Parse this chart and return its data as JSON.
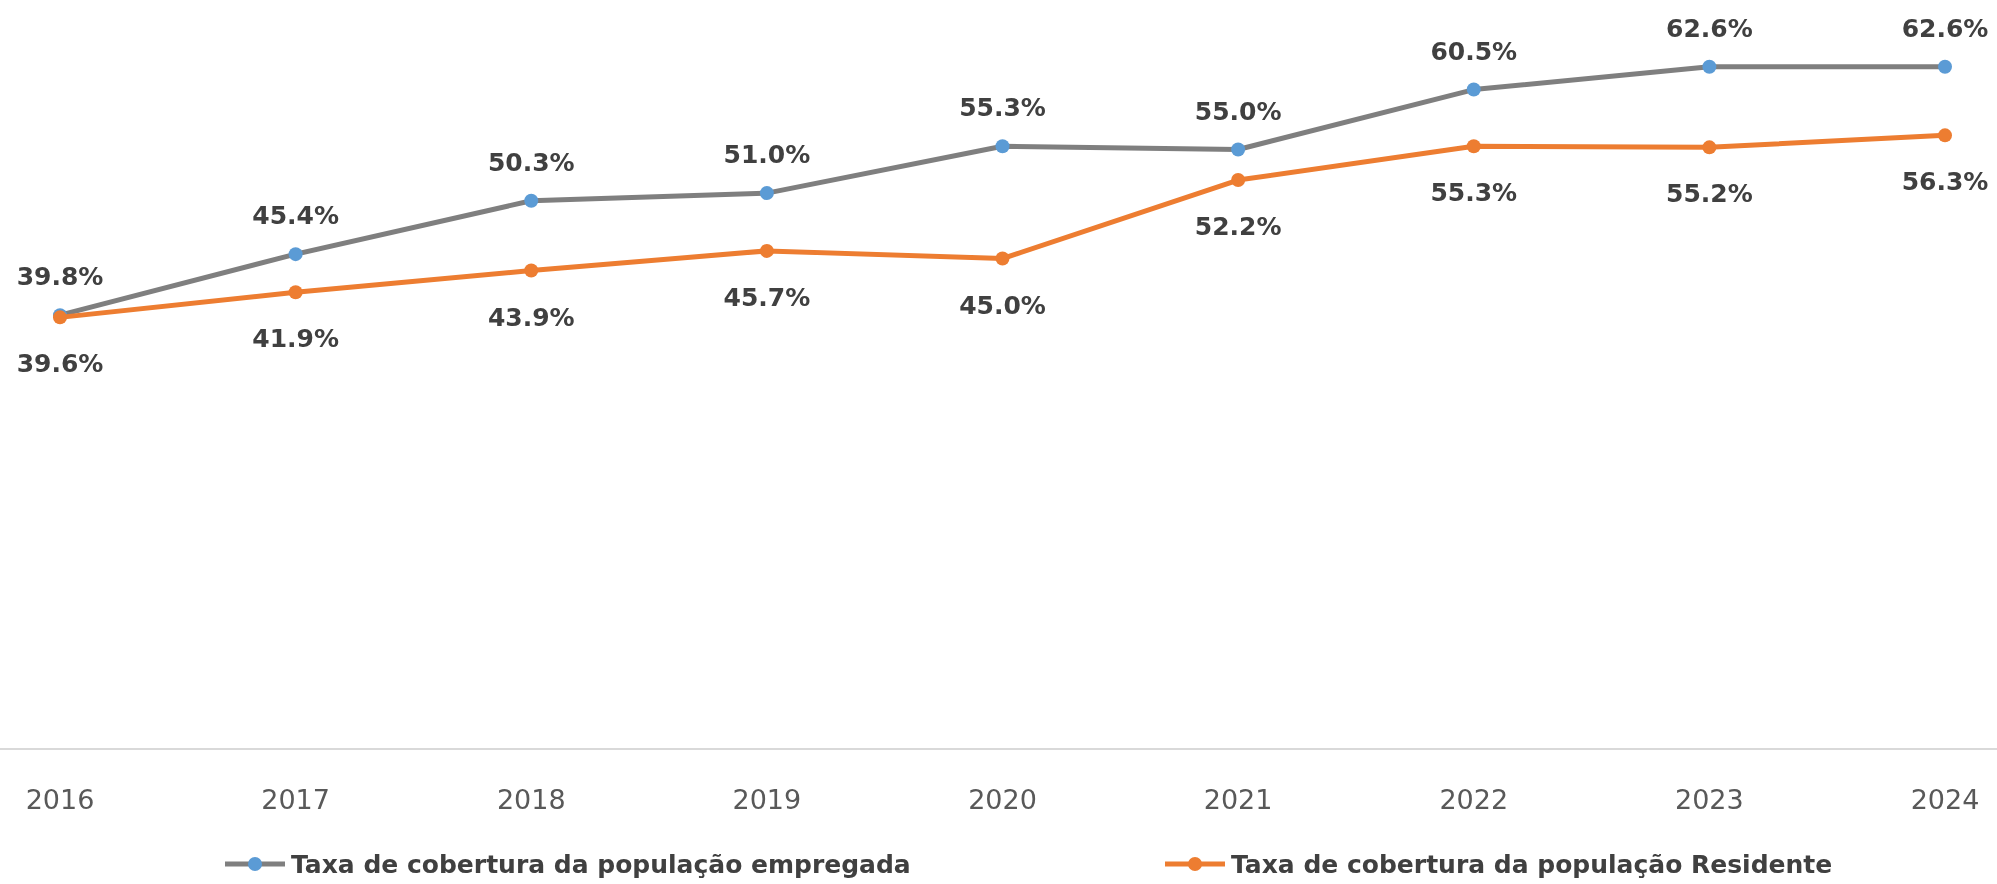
{
  "chart_data": {
    "type": "line",
    "categories": [
      "2016",
      "2017",
      "2018",
      "2019",
      "2020",
      "2021",
      "2022",
      "2023",
      "2024"
    ],
    "series": [
      {
        "name": "Taxa de cobertura da população empregada",
        "color": "#7f7f7f",
        "colors": [
          "#5b9bd5",
          "#5b9bd5",
          "#5b9bd5",
          "#5b9bd5",
          "#5b9bd5",
          "#5b9bd5",
          "#5b9bd5",
          "#5b9bd5",
          "#5b9bd5"
        ],
        "values": [
          39.8,
          45.4,
          50.3,
          51.0,
          55.3,
          55.0,
          60.5,
          62.6,
          62.6
        ],
        "value_labels": [
          "39.8%",
          "45.4%",
          "50.3%",
          "51.0%",
          "55.3%",
          "55.0%",
          "60.5%",
          "62.6%",
          "62.6%"
        ]
      },
      {
        "name": "Taxa de cobertura da população Residente",
        "color": "#ed7d31",
        "values": [
          39.6,
          41.9,
          43.9,
          45.7,
          45.0,
          52.2,
          55.3,
          55.2,
          56.3
        ],
        "value_labels": [
          "39.6%",
          "41.9%",
          "43.9%",
          "45.7%",
          "45.0%",
          "52.2%",
          "55.3%",
          "55.2%",
          "56.3%"
        ]
      }
    ],
    "tick_labels": "x",
    "legend": "bottom",
    "marker": "circle",
    "line_style": "solid",
    "grid": false
  }
}
